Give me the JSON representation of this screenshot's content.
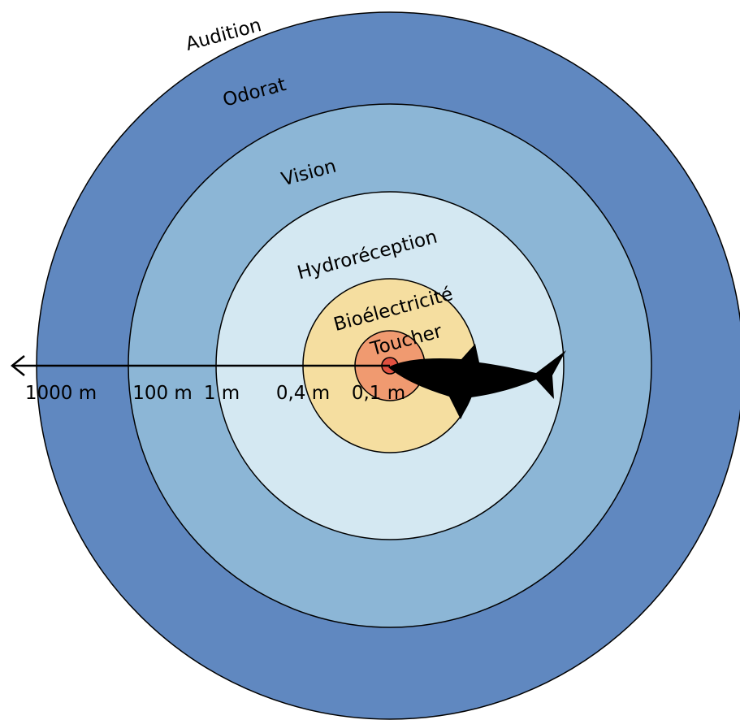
{
  "zones": [
    {
      "label": "Audition"
    },
    {
      "label": "Odorat"
    },
    {
      "label": "Vision"
    },
    {
      "label": "Hydroréception"
    },
    {
      "label": "Bioélectricité"
    },
    {
      "label": "Toucher"
    }
  ],
  "distances": [
    "1000 m",
    "100 m",
    "1 m",
    "0,4 m",
    "0,1 m"
  ]
}
